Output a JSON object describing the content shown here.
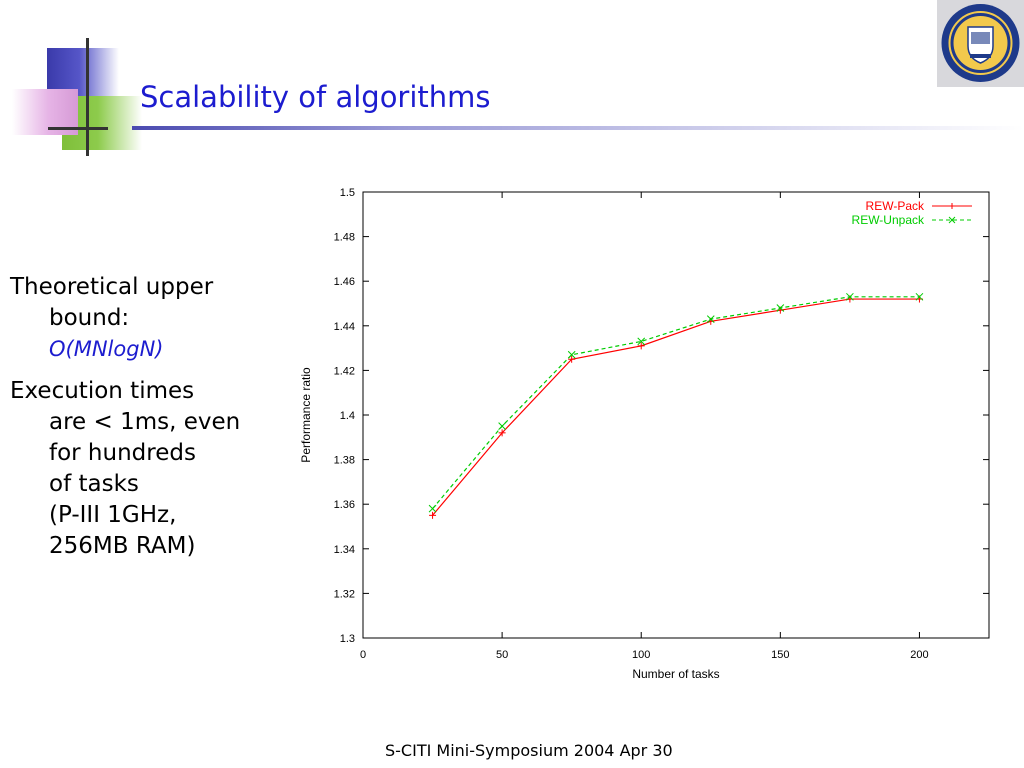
{
  "slide": {
    "title": "Scalability of algorithms",
    "footer": "S-CITI Mini-Symposium 2004 Apr 30",
    "accent_color": "#1c1ccf",
    "logo_icon": "university-of-pittsburgh-seal-icon"
  },
  "bullets": [
    {
      "lines": [
        "Theoretical upper",
        "bound:"
      ],
      "sub": "O(MNlogN)"
    },
    {
      "lines": [
        "Execution times",
        "are < 1ms, even",
        "for hundreds",
        "of tasks",
        "(P-III 1GHz,",
        "256MB RAM)"
      ]
    }
  ],
  "chart_data": {
    "type": "line",
    "title": "",
    "xlabel": "Number of tasks",
    "ylabel": "Performance ratio",
    "xlim": [
      0,
      225
    ],
    "ylim": [
      1.3,
      1.5
    ],
    "x_ticks": [
      0,
      50,
      100,
      150,
      200
    ],
    "y_ticks": [
      1.3,
      1.32,
      1.34,
      1.36,
      1.38,
      1.4,
      1.42,
      1.44,
      1.46,
      1.48,
      1.5
    ],
    "legend_position": "top-right",
    "grid": false,
    "series": [
      {
        "name": "REW-Pack",
        "color": "#ff0000",
        "marker": "+",
        "dash": "solid",
        "x": [
          25,
          50,
          75,
          100,
          125,
          150,
          175,
          200
        ],
        "y": [
          1.355,
          1.392,
          1.425,
          1.431,
          1.442,
          1.447,
          1.452,
          1.452
        ]
      },
      {
        "name": "REW-Unpack",
        "color": "#00cc00",
        "marker": "x",
        "dash": "dashed",
        "x": [
          25,
          50,
          75,
          100,
          125,
          150,
          175,
          200
        ],
        "y": [
          1.358,
          1.395,
          1.427,
          1.433,
          1.443,
          1.448,
          1.453,
          1.453
        ]
      }
    ]
  }
}
